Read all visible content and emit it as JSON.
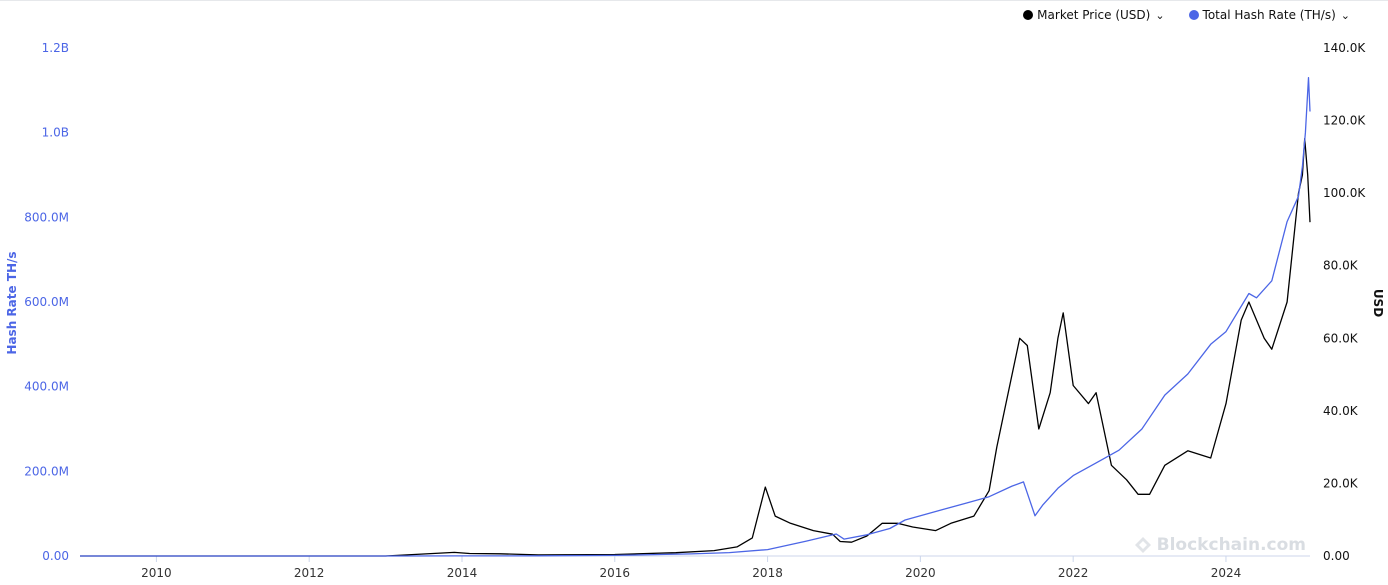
{
  "legend": {
    "items": [
      {
        "label": "Market Price (USD)",
        "color": "#000000"
      },
      {
        "label": "Total Hash Rate (TH/s)",
        "color": "#4c66e6"
      }
    ]
  },
  "watermark": {
    "text": "Blockchain.com"
  },
  "chart_data": {
    "type": "line",
    "legend_position": "top-right",
    "grid": false,
    "x_ticks": [
      "2010",
      "2012",
      "2014",
      "2016",
      "2018",
      "2020",
      "2022",
      "2024"
    ],
    "xlim": [
      2009.0,
      2025.1
    ],
    "left_axis": {
      "label": "Hash Rate TH/s",
      "color": "#4c66e6",
      "ylim": [
        0,
        1200000000
      ],
      "ticks": [
        "0.00",
        "200.0M",
        "400.0M",
        "600.0M",
        "800.0M",
        "1.0B",
        "1.2B"
      ]
    },
    "right_axis": {
      "label": "USD",
      "color": "#111111",
      "ylim": [
        0,
        140000
      ],
      "ticks": [
        "0.00",
        "20.0K",
        "40.0K",
        "60.0K",
        "80.0K",
        "100.0K",
        "120.0K",
        "140.0K"
      ]
    },
    "series": [
      {
        "name": "Market Price (USD)",
        "axis": "right",
        "color": "#000000",
        "x": [
          2009.0,
          2013.0,
          2013.9,
          2014.1,
          2014.5,
          2015.0,
          2016.0,
          2016.8,
          2017.3,
          2017.6,
          2017.8,
          2017.97,
          2018.1,
          2018.3,
          2018.6,
          2018.85,
          2018.95,
          2019.1,
          2019.3,
          2019.5,
          2019.7,
          2019.9,
          2020.2,
          2020.4,
          2020.7,
          2020.9,
          2021.0,
          2021.1,
          2021.3,
          2021.4,
          2021.55,
          2021.7,
          2021.8,
          2021.87,
          2022.0,
          2022.2,
          2022.3,
          2022.5,
          2022.7,
          2022.85,
          2023.0,
          2023.2,
          2023.5,
          2023.8,
          2024.0,
          2024.2,
          2024.3,
          2024.5,
          2024.6,
          2024.8,
          2024.95,
          2025.0,
          2025.03,
          2025.07,
          2025.1
        ],
        "values": [
          0,
          0,
          1000,
          700,
          600,
          300,
          400,
          900,
          1500,
          2500,
          5000,
          19000,
          11000,
          9000,
          7000,
          6000,
          4000,
          3800,
          5500,
          9000,
          9000,
          8000,
          7000,
          9000,
          11000,
          18000,
          30000,
          40000,
          60000,
          58000,
          35000,
          45000,
          60000,
          67000,
          47000,
          42000,
          45000,
          25000,
          21000,
          17000,
          17000,
          25000,
          29000,
          27000,
          42000,
          65000,
          70000,
          60000,
          57000,
          70000,
          100000,
          105000,
          115000,
          105000,
          92000
        ]
      },
      {
        "name": "Total Hash Rate (TH/s)",
        "axis": "left",
        "color": "#4c66e6",
        "x": [
          2009.0,
          2013.0,
          2014.0,
          2015.0,
          2016.0,
          2017.0,
          2017.5,
          2018.0,
          2018.5,
          2018.9,
          2019.0,
          2019.3,
          2019.6,
          2019.8,
          2020.0,
          2020.3,
          2020.6,
          2020.9,
          2021.2,
          2021.35,
          2021.5,
          2021.6,
          2021.8,
          2022.0,
          2022.3,
          2022.6,
          2022.9,
          2023.2,
          2023.5,
          2023.8,
          2024.0,
          2024.3,
          2024.4,
          2024.6,
          2024.8,
          2024.95,
          2025.0,
          2025.04,
          2025.08,
          2025.1
        ],
        "values": [
          0,
          0,
          200000,
          500000,
          1500000,
          5000000,
          8000000,
          15000000,
          35000000,
          52000000,
          40000000,
          50000000,
          65000000,
          85000000,
          95000000,
          110000000,
          125000000,
          140000000,
          165000000,
          175000000,
          95000000,
          120000000,
          160000000,
          190000000,
          220000000,
          250000000,
          300000000,
          380000000,
          430000000,
          500000000,
          530000000,
          620000000,
          610000000,
          650000000,
          790000000,
          850000000,
          920000000,
          1000000000,
          1130000000,
          1050000000
        ]
      }
    ]
  }
}
